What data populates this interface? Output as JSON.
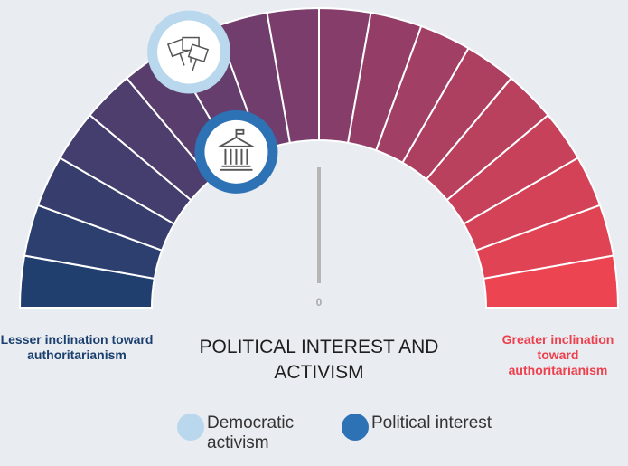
{
  "chart_data": {
    "type": "gauge",
    "title": "POLITICAL INTEREST AND ACTIVISM",
    "left_label": "Lesser inclination toward authoritarianism",
    "right_label": "Greater inclination toward authoritarianism",
    "xlim": [
      -90,
      90
    ],
    "xticks": [
      0
    ],
    "segments": 18,
    "colors": [
      "#1b3f6e",
      "#813d6c",
      "#f3444f"
    ],
    "series": [
      {
        "name": "Democratic activism",
        "color": "#b9d8ee",
        "values": [
          -27
        ]
      },
      {
        "name": "Political interest",
        "color": "#2e72b6",
        "values": [
          -28
        ]
      }
    ]
  }
}
